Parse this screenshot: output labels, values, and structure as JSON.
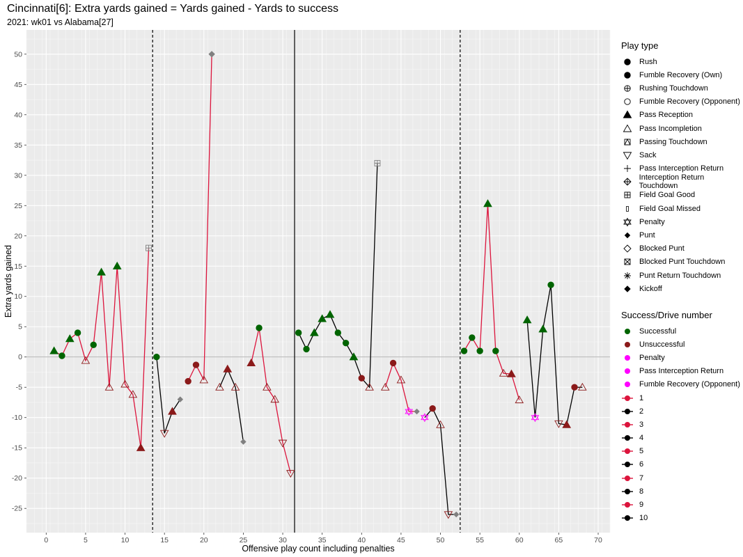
{
  "chart_data": {
    "type": "scatter",
    "title": "Cincinnati[6]: Extra yards gained = Yards gained - Yards to success",
    "subtitle": "2021: wk01 vs Alabama[27]",
    "xlabel": "Offensive play count including penalties",
    "ylabel": "Extra yards gained",
    "xlim": [
      -2.5,
      71.5
    ],
    "ylim": [
      -29,
      54
    ],
    "x_ticks": [
      0,
      5,
      10,
      15,
      20,
      25,
      30,
      35,
      40,
      45,
      50,
      55,
      60,
      65,
      70
    ],
    "y_ticks": [
      -25,
      -20,
      -15,
      -10,
      -5,
      0,
      5,
      10,
      15,
      20,
      25,
      30,
      35,
      40,
      45,
      50
    ],
    "vlines": [
      {
        "x": 13.5,
        "style": "dashed"
      },
      {
        "x": 31.5,
        "style": "solid"
      },
      {
        "x": 52.5,
        "style": "dashed"
      }
    ],
    "hline": 0,
    "grid": true,
    "colors": {
      "Successful": "#006400",
      "Unsuccessful": "#8B1A1A",
      "Penalty": "#FF00FF",
      "Kick": "#808080",
      "drive_odd": "#DC143C",
      "drive_even": "#000000",
      "panel": "#EBEBEB",
      "grid": "#FFFFFF"
    },
    "drives": [
      {
        "drive": 1,
        "points": [
          [
            1,
            1,
            "Pass Reception",
            "Successful"
          ],
          [
            2,
            0.2,
            "Rush",
            "Successful"
          ],
          [
            3,
            3,
            "Pass Reception",
            "Successful"
          ],
          [
            4,
            4,
            "Rush",
            "Successful"
          ],
          [
            5,
            -0.6,
            "Pass Incompletion",
            "Unsuccessful"
          ],
          [
            6,
            2,
            "Rush",
            "Successful"
          ],
          [
            7,
            14,
            "Pass Reception",
            "Successful"
          ],
          [
            8,
            -5,
            "Pass Incompletion",
            "Unsuccessful"
          ],
          [
            9,
            15,
            "Pass Reception",
            "Successful"
          ],
          [
            10,
            -4.5,
            "Pass Incompletion",
            "Unsuccessful"
          ],
          [
            11,
            -6.2,
            "Pass Incompletion",
            "Unsuccessful"
          ],
          [
            12,
            -15,
            "Pass Reception",
            "Unsuccessful"
          ],
          [
            13,
            18,
            "Field Goal Good",
            "Kick"
          ]
        ]
      },
      {
        "drive": 2,
        "points": [
          [
            14,
            0,
            "Rush",
            "Successful"
          ],
          [
            15,
            -12.6,
            "Sack",
            "Unsuccessful"
          ],
          [
            16,
            -9,
            "Pass Reception",
            "Unsuccessful"
          ],
          [
            17,
            -7,
            "Punt",
            "Kick"
          ]
        ]
      },
      {
        "drive": 3,
        "points": [
          [
            18,
            -4,
            "Rush",
            "Unsuccessful"
          ],
          [
            19,
            -1.3,
            "Rush",
            "Unsuccessful"
          ],
          [
            20,
            -3.8,
            "Pass Incompletion",
            "Unsuccessful"
          ],
          [
            21,
            50,
            "Kickoff",
            "Kick"
          ]
        ]
      },
      {
        "drive": 4,
        "points": [
          [
            22,
            -5,
            "Pass Incompletion",
            "Unsuccessful"
          ],
          [
            23,
            -2,
            "Pass Reception",
            "Unsuccessful"
          ],
          [
            24,
            -5,
            "Pass Incompletion",
            "Unsuccessful"
          ],
          [
            25,
            -14,
            "Punt",
            "Kick"
          ]
        ]
      },
      {
        "drive": 5,
        "points": [
          [
            26,
            -1,
            "Pass Reception",
            "Unsuccessful"
          ],
          [
            27,
            4.8,
            "Rush",
            "Successful"
          ],
          [
            28,
            -5,
            "Pass Incompletion",
            "Unsuccessful"
          ],
          [
            29,
            -7,
            "Pass Incompletion",
            "Unsuccessful"
          ],
          [
            30,
            -14.2,
            "Sack",
            "Unsuccessful"
          ],
          [
            31,
            -19.2,
            "Sack",
            "Unsuccessful"
          ]
        ]
      },
      {
        "drive": 6,
        "points": [
          [
            32,
            4,
            "Rush",
            "Successful"
          ],
          [
            33,
            1.3,
            "Rush",
            "Successful"
          ],
          [
            34,
            4,
            "Pass Reception",
            "Successful"
          ],
          [
            35,
            6.3,
            "Pass Reception",
            "Successful"
          ],
          [
            36,
            7,
            "Pass Reception",
            "Successful"
          ],
          [
            37,
            4,
            "Rush",
            "Successful"
          ],
          [
            38,
            2.3,
            "Rush",
            "Successful"
          ],
          [
            39,
            0,
            "Pass Reception",
            "Successful"
          ],
          [
            40,
            -3.5,
            "Rush",
            "Unsuccessful"
          ],
          [
            41,
            -5,
            "Pass Incompletion",
            "Unsuccessful"
          ],
          [
            42,
            32,
            "Field Goal Good",
            "Kick"
          ]
        ]
      },
      {
        "drive": 7,
        "points": [
          [
            43,
            -5,
            "Pass Incompletion",
            "Unsuccessful"
          ],
          [
            44,
            -1,
            "Rush",
            "Unsuccessful"
          ],
          [
            45,
            -3.8,
            "Pass Incompletion",
            "Unsuccessful"
          ],
          [
            46,
            -9,
            "Penalty",
            "Penalty"
          ],
          [
            47,
            -9,
            "Punt",
            "Kick"
          ]
        ]
      },
      {
        "drive": 8,
        "points": [
          [
            48,
            -10,
            "Penalty",
            "Penalty"
          ],
          [
            49,
            -8.5,
            "Rush",
            "Unsuccessful"
          ],
          [
            50,
            -11.2,
            "Pass Incompletion",
            "Unsuccessful"
          ],
          [
            51,
            -26,
            "Sack",
            "Unsuccessful"
          ],
          [
            52,
            -26,
            "Punt",
            "Kick"
          ]
        ]
      },
      {
        "drive": 9,
        "points": [
          [
            53,
            1,
            "Rush",
            "Successful"
          ],
          [
            54,
            3.2,
            "Rush",
            "Successful"
          ],
          [
            55,
            1,
            "Rush",
            "Successful"
          ],
          [
            56,
            25.3,
            "Pass Reception",
            "Successful"
          ],
          [
            57,
            1,
            "Rush",
            "Successful"
          ],
          [
            58,
            -2.7,
            "Pass Incompletion",
            "Unsuccessful"
          ],
          [
            59,
            -2.8,
            "Pass Reception",
            "Unsuccessful"
          ],
          [
            60,
            -7.1,
            "Pass Incompletion",
            "Unsuccessful"
          ]
        ]
      },
      {
        "drive": 10,
        "points": [
          [
            61,
            6.1,
            "Pass Reception",
            "Successful"
          ],
          [
            62,
            -10,
            "Penalty",
            "Penalty"
          ],
          [
            63,
            4.6,
            "Pass Reception",
            "Successful"
          ],
          [
            64,
            11.9,
            "Rush",
            "Successful"
          ],
          [
            65,
            -11,
            "Sack",
            "Unsuccessful"
          ],
          [
            66,
            -11.2,
            "Pass Reception",
            "Unsuccessful"
          ],
          [
            67,
            -5,
            "Rush",
            "Unsuccessful"
          ],
          [
            68,
            -5,
            "Pass Incompletion",
            "Unsuccessful"
          ]
        ]
      }
    ],
    "legend_play_type": {
      "title": "Play type",
      "entries": [
        {
          "label": "Rush",
          "shape": "dot"
        },
        {
          "label": "Fumble Recovery (Own)",
          "shape": "dot"
        },
        {
          "label": "Rushing Touchdown",
          "shape": "circle-plus"
        },
        {
          "label": "Fumble Recovery (Opponent)",
          "shape": "circle-open"
        },
        {
          "label": "Pass Reception",
          "shape": "triangle-filled"
        },
        {
          "label": "Pass Incompletion",
          "shape": "triangle-open"
        },
        {
          "label": "Passing Touchdown",
          "shape": "square-triangle"
        },
        {
          "label": "Sack",
          "shape": "triangle-down-open"
        },
        {
          "label": "Pass Interception Return",
          "shape": "plus"
        },
        {
          "label": "Interception Return Touchdown",
          "shape": "diamond-plus"
        },
        {
          "label": "Field Goal Good",
          "shape": "square-plus"
        },
        {
          "label": "Field Goal Missed",
          "shape": "small-rect"
        },
        {
          "label": "Penalty",
          "shape": "star-of-david"
        },
        {
          "label": "Punt",
          "shape": "diamond-small"
        },
        {
          "label": "Blocked Punt",
          "shape": "diamond-open"
        },
        {
          "label": "Blocked Punt Touchdown",
          "shape": "square-x"
        },
        {
          "label": "Punt Return Touchdown",
          "shape": "asterisk"
        },
        {
          "label": "Kickoff",
          "shape": "diamond-filled"
        }
      ]
    },
    "legend_success": {
      "title": "Success/Drive number",
      "entries": [
        {
          "label": "Successful",
          "color": "#006400",
          "line": false
        },
        {
          "label": "Unsuccessful",
          "color": "#8B1A1A",
          "line": false
        },
        {
          "label": "Penalty",
          "color": "#FF00FF",
          "line": false
        },
        {
          "label": "Pass Interception Return",
          "color": "#FF00FF",
          "line": false
        },
        {
          "label": "Fumble Recovery (Opponent)",
          "color": "#FF00FF",
          "line": false
        },
        {
          "label": "1",
          "color": "#DC143C",
          "line": true
        },
        {
          "label": "2",
          "color": "#000000",
          "line": true
        },
        {
          "label": "3",
          "color": "#DC143C",
          "line": true
        },
        {
          "label": "4",
          "color": "#000000",
          "line": true
        },
        {
          "label": "5",
          "color": "#DC143C",
          "line": true
        },
        {
          "label": "6",
          "color": "#000000",
          "line": true
        },
        {
          "label": "7",
          "color": "#DC143C",
          "line": true
        },
        {
          "label": "8",
          "color": "#000000",
          "line": true
        },
        {
          "label": "9",
          "color": "#DC143C",
          "line": true
        },
        {
          "label": "10",
          "color": "#000000",
          "line": true
        }
      ]
    }
  }
}
